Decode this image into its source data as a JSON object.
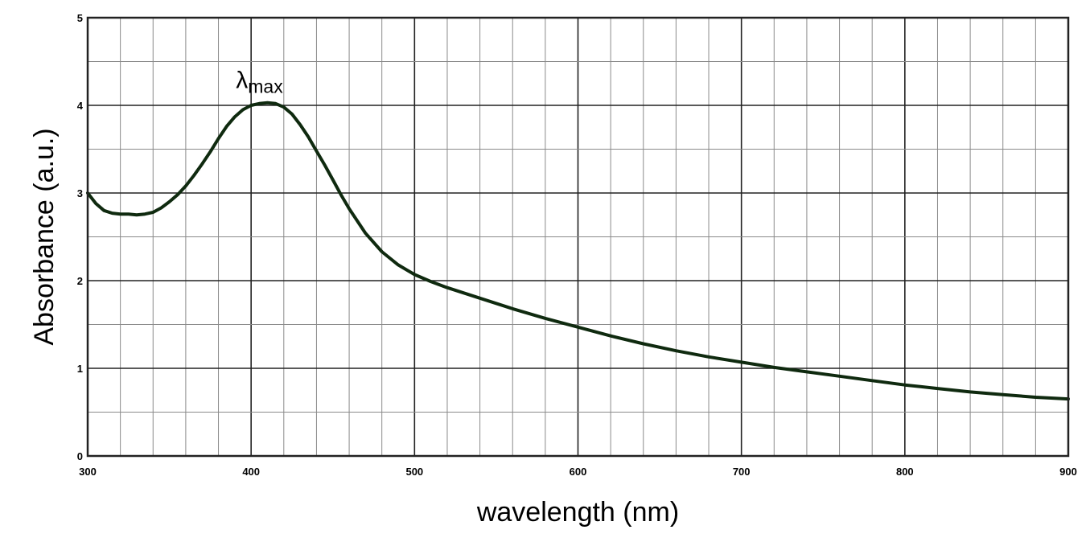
{
  "chart_data": {
    "type": "line",
    "xlabel": "wavelength (nm)",
    "ylabel": "Absorbance (a.u.)",
    "xlim": [
      300,
      900
    ],
    "ylim": [
      0,
      5
    ],
    "xticks": [
      "300",
      "400",
      "500",
      "600",
      "700",
      "800",
      "900"
    ],
    "yticks": [
      "0",
      "1",
      "2",
      "3",
      "4",
      "5"
    ],
    "grid": true,
    "annotation": {
      "symbol": "λ",
      "subscript": "max",
      "x": 410,
      "y": 4.03
    },
    "series": [
      {
        "color": "#0f2a0f",
        "x": [
          300,
          305,
          310,
          315,
          320,
          325,
          330,
          335,
          340,
          345,
          350,
          355,
          360,
          365,
          370,
          375,
          380,
          385,
          390,
          395,
          400,
          405,
          410,
          415,
          420,
          425,
          430,
          435,
          440,
          445,
          450,
          455,
          460,
          470,
          480,
          490,
          500,
          510,
          520,
          540,
          560,
          580,
          600,
          620,
          640,
          660,
          680,
          700,
          720,
          740,
          760,
          780,
          800,
          820,
          840,
          860,
          880,
          900
        ],
        "y": [
          3.0,
          2.88,
          2.8,
          2.77,
          2.76,
          2.76,
          2.75,
          2.76,
          2.78,
          2.83,
          2.9,
          2.98,
          3.08,
          3.2,
          3.33,
          3.47,
          3.62,
          3.76,
          3.87,
          3.95,
          4.0,
          4.02,
          4.03,
          4.02,
          3.98,
          3.9,
          3.78,
          3.64,
          3.48,
          3.32,
          3.15,
          2.98,
          2.82,
          2.54,
          2.33,
          2.18,
          2.07,
          1.99,
          1.92,
          1.8,
          1.68,
          1.57,
          1.47,
          1.37,
          1.28,
          1.2,
          1.13,
          1.07,
          1.01,
          0.96,
          0.91,
          0.86,
          0.81,
          0.77,
          0.73,
          0.7,
          0.67,
          0.65
        ]
      }
    ]
  }
}
